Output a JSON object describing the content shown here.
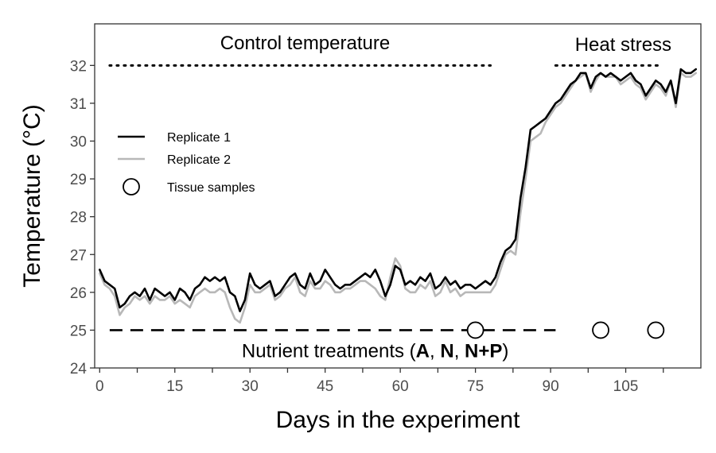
{
  "chart_data": {
    "type": "line",
    "title": "",
    "xlabel": "Days in the experiment",
    "ylabel": "Temperature (°C)",
    "xlim": [
      -1,
      120
    ],
    "ylim": [
      24,
      33.1
    ],
    "x_ticks": [
      0,
      15,
      30,
      45,
      60,
      75,
      90,
      105
    ],
    "x_minor_ticks": [
      7.5,
      22.5,
      37.5,
      52.5,
      67.5,
      82.5,
      97.5,
      112.5
    ],
    "y_ticks": [
      24,
      25,
      26,
      27,
      28,
      29,
      30,
      31,
      32
    ],
    "grid": false,
    "legend_position": "left",
    "colors": {
      "replicate1": "#000000",
      "replicate2": "#b8b8b8",
      "axis": "#333333",
      "tick_text": "#4d4d4d"
    },
    "series": [
      {
        "name": "Replicate 1",
        "x": [
          0,
          1,
          2,
          3,
          4,
          5,
          6,
          7,
          8,
          9,
          10,
          11,
          12,
          13,
          14,
          15,
          16,
          17,
          18,
          19,
          20,
          21,
          22,
          23,
          24,
          25,
          26,
          27,
          28,
          29,
          30,
          31,
          32,
          33,
          34,
          35,
          36,
          37,
          38,
          39,
          40,
          41,
          42,
          43,
          44,
          45,
          46,
          47,
          48,
          49,
          50,
          51,
          52,
          53,
          54,
          55,
          56,
          57,
          58,
          59,
          60,
          61,
          62,
          63,
          64,
          65,
          66,
          67,
          68,
          69,
          70,
          71,
          72,
          73,
          74,
          75,
          76,
          77,
          78,
          79,
          80,
          81,
          82,
          83,
          84,
          85,
          86,
          87,
          88,
          89,
          90,
          91,
          92,
          93,
          94,
          95,
          96,
          97,
          98,
          99,
          100,
          101,
          102,
          103,
          104,
          105,
          106,
          107,
          108,
          109,
          110,
          111,
          112,
          113,
          114,
          115,
          116,
          117,
          118,
          119
        ],
        "y": [
          26.6,
          26.3,
          26.2,
          26.1,
          25.6,
          25.7,
          25.9,
          26.0,
          25.9,
          26.1,
          25.8,
          26.1,
          26.0,
          25.9,
          26.0,
          25.8,
          26.1,
          26.0,
          25.8,
          26.1,
          26.2,
          26.4,
          26.3,
          26.4,
          26.3,
          26.4,
          26.0,
          25.9,
          25.5,
          25.8,
          26.5,
          26.2,
          26.1,
          26.2,
          26.3,
          25.9,
          26.0,
          26.2,
          26.4,
          26.5,
          26.2,
          26.1,
          26.5,
          26.2,
          26.3,
          26.6,
          26.4,
          26.2,
          26.1,
          26.2,
          26.2,
          26.3,
          26.4,
          26.5,
          26.4,
          26.6,
          26.3,
          25.9,
          26.2,
          26.7,
          26.6,
          26.2,
          26.3,
          26.2,
          26.4,
          26.3,
          26.5,
          26.1,
          26.2,
          26.4,
          26.2,
          26.3,
          26.1,
          26.2,
          26.2,
          26.1,
          26.2,
          26.3,
          26.2,
          26.4,
          26.8,
          27.1,
          27.2,
          27.4,
          28.5,
          29.3,
          30.3,
          30.4,
          30.5,
          30.6,
          30.8,
          31.0,
          31.1,
          31.3,
          31.5,
          31.6,
          31.8,
          31.8,
          31.4,
          31.7,
          31.8,
          31.7,
          31.8,
          31.7,
          31.6,
          31.7,
          31.8,
          31.6,
          31.5,
          31.2,
          31.4,
          31.6,
          31.5,
          31.3,
          31.6,
          31.0,
          31.9,
          31.8,
          31.8,
          31.9
        ]
      },
      {
        "name": "Replicate 2",
        "x": [
          0,
          1,
          2,
          3,
          4,
          5,
          6,
          7,
          8,
          9,
          10,
          11,
          12,
          13,
          14,
          15,
          16,
          17,
          18,
          19,
          20,
          21,
          22,
          23,
          24,
          25,
          26,
          27,
          28,
          29,
          30,
          31,
          32,
          33,
          34,
          35,
          36,
          37,
          38,
          39,
          40,
          41,
          42,
          43,
          44,
          45,
          46,
          47,
          48,
          49,
          50,
          51,
          52,
          53,
          54,
          55,
          56,
          57,
          58,
          59,
          60,
          61,
          62,
          63,
          64,
          65,
          66,
          67,
          68,
          69,
          70,
          71,
          72,
          73,
          74,
          75,
          76,
          77,
          78,
          79,
          80,
          81,
          82,
          83,
          84,
          85,
          86,
          87,
          88,
          89,
          90,
          91,
          92,
          93,
          94,
          95,
          96,
          97,
          98,
          99,
          100,
          101,
          102,
          103,
          104,
          105,
          106,
          107,
          108,
          109,
          110,
          111,
          112,
          113,
          114,
          115,
          116,
          117,
          118,
          119
        ],
        "y": [
          26.5,
          26.2,
          26.1,
          25.9,
          25.4,
          25.6,
          25.7,
          25.9,
          25.8,
          25.9,
          25.7,
          25.9,
          25.8,
          25.8,
          25.9,
          25.7,
          25.8,
          25.7,
          25.6,
          25.9,
          26.0,
          26.1,
          26.0,
          26.0,
          26.1,
          26.0,
          25.6,
          25.3,
          25.2,
          25.6,
          26.2,
          26.0,
          26.0,
          26.1,
          26.2,
          25.8,
          25.9,
          26.1,
          26.2,
          26.4,
          26.0,
          25.9,
          26.3,
          26.1,
          26.1,
          26.3,
          26.2,
          26.0,
          26.0,
          26.1,
          26.1,
          26.2,
          26.3,
          26.3,
          26.2,
          26.1,
          25.9,
          25.8,
          26.4,
          26.9,
          26.7,
          26.1,
          26.0,
          26.0,
          26.2,
          26.1,
          26.3,
          25.9,
          26.0,
          26.3,
          26.0,
          26.1,
          25.9,
          26.0,
          26.0,
          26.0,
          26.0,
          26.0,
          26.0,
          26.2,
          26.6,
          27.0,
          27.1,
          27.0,
          28.1,
          29.0,
          30.0,
          30.1,
          30.2,
          30.5,
          30.7,
          30.9,
          31.0,
          31.2,
          31.4,
          31.6,
          31.7,
          31.8,
          31.3,
          31.6,
          31.8,
          31.7,
          31.7,
          31.7,
          31.5,
          31.6,
          31.7,
          31.5,
          31.4,
          31.1,
          31.3,
          31.5,
          31.4,
          31.2,
          31.6,
          30.9,
          31.8,
          31.7,
          31.7,
          31.8
        ]
      },
      {
        "name": "Tissue samples",
        "kind": "points",
        "x": [
          75,
          100,
          111
        ],
        "y": [
          25,
          25,
          25
        ]
      }
    ],
    "annotations": [
      {
        "text": "Control temperature",
        "x": 41,
        "y": 32.6,
        "line": {
          "x1": 2,
          "x2": 78,
          "y": 32,
          "style": "dotted"
        }
      },
      {
        "text": "Heat stress",
        "x": 104.5,
        "y": 32.55,
        "line": {
          "x1": 91,
          "x2": 112,
          "y": 32,
          "style": "dotted"
        }
      },
      {
        "text_runs": [
          {
            "text": "Nutrient treatments (",
            "bold": false
          },
          {
            "text": "A",
            "bold": true
          },
          {
            "text": ", ",
            "bold": false
          },
          {
            "text": "N",
            "bold": true
          },
          {
            "text": ", ",
            "bold": false
          },
          {
            "text": "N+P",
            "bold": true
          },
          {
            "text": ")",
            "bold": false
          }
        ],
        "x": 55,
        "y": 24.45,
        "line": {
          "x1": 2,
          "x2": 91,
          "y": 25,
          "style": "dashed"
        }
      }
    ],
    "legend": [
      {
        "label": "Replicate 1",
        "kind": "line",
        "color": "#000000"
      },
      {
        "label": "Replicate 2",
        "kind": "line",
        "color": "#b8b8b8"
      },
      {
        "label": "Tissue samples",
        "kind": "circle"
      }
    ]
  }
}
